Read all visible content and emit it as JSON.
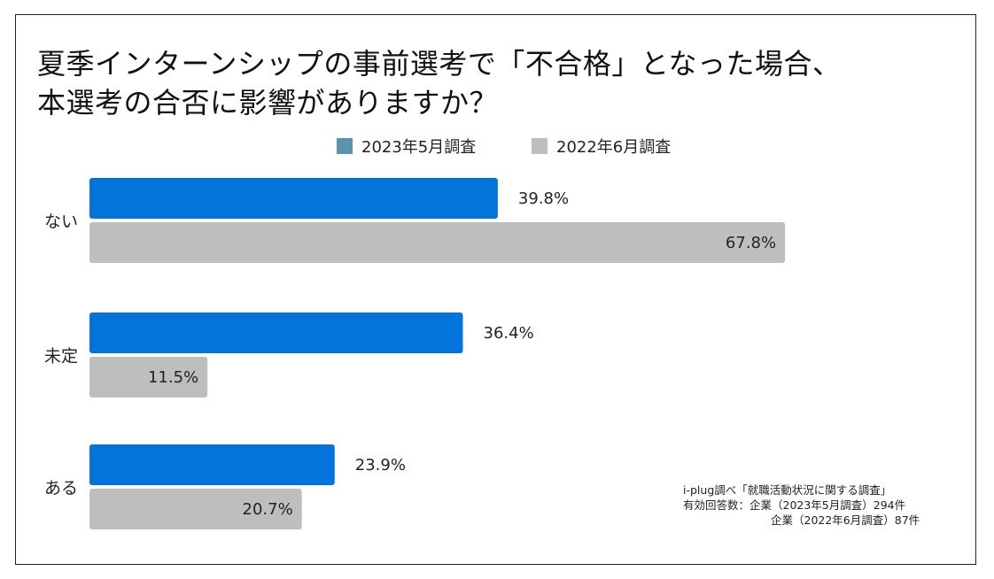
{
  "title": {
    "line1": "夏季インターンシップの事前選考で「不合格」となった場合、",
    "line2": "本選考の合否に影響がありますか？"
  },
  "colors": {
    "series_2023": "#0274DB",
    "series_2022": "#BEBEBE",
    "legend_2023": "#5A93AC",
    "legend_2022": "#BEBEBE"
  },
  "chart_data": {
    "type": "bar",
    "orientation": "horizontal",
    "title": "夏季インターンシップの事前選考で「不合格」となった場合、本選考の合否に影響がありますか？",
    "categories": [
      "ない",
      "未定",
      "ある"
    ],
    "series": [
      {
        "name": "2023年5月調査",
        "values": [
          39.8,
          36.4,
          23.9
        ],
        "labels": [
          "39.8%",
          "36.4%",
          "23.9%"
        ]
      },
      {
        "name": "2022年6月調査",
        "values": [
          67.8,
          11.5,
          20.7
        ],
        "labels": [
          "67.8%",
          "11.5%",
          "20.7%"
        ]
      }
    ],
    "xlim": [
      0,
      100
    ],
    "unit": "%",
    "grid": false,
    "legend_position": "top-center"
  },
  "notes": {
    "source": "i-plug調べ「就職活動状況に関する調査」",
    "respondents_1": "有効回答数：企業（2023年5月調査）294件",
    "respondents_2": "企業（2022年6月調査）87件"
  }
}
